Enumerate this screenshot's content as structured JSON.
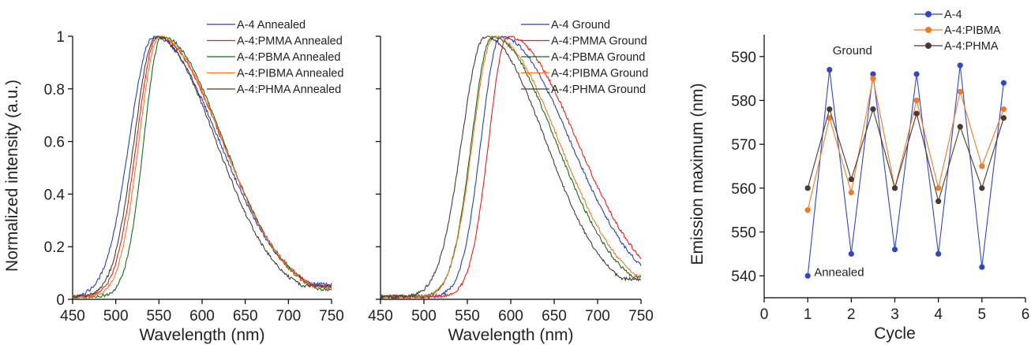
{
  "chart_data": [
    {
      "type": "line",
      "xlabel": "Wavelength (nm)",
      "ylabel": "Normalized intensity (a.u.)",
      "xlim": [
        450,
        750
      ],
      "ylim": [
        0,
        1
      ],
      "xticks": [
        450,
        500,
        550,
        600,
        650,
        700,
        750
      ],
      "yticks": [
        0,
        0.2,
        0.4,
        0.6,
        0.8,
        1
      ],
      "ytick_labels": [
        "0",
        "0.2",
        "0.4",
        "0.6",
        "0.8",
        "1"
      ],
      "legend_position": "top-right",
      "series": [
        {
          "name": "A-4 Annealed",
          "color": "#2b3fb8",
          "peak": 543,
          "wl": 32,
          "wr": 90,
          "tail": 0.075
        },
        {
          "name": "A-4:PMMA Annealed",
          "color": "#e8211d",
          "peak": 548,
          "wl": 28,
          "wr": 88,
          "tail": 0.065
        },
        {
          "name": "A-4:PBMA Annealed",
          "color": "#1c6a1c",
          "peak": 553,
          "wl": 24,
          "wr": 84,
          "tail": 0.05
        },
        {
          "name": "A-4:PIBMA Annealed",
          "color": "#f07a2a",
          "peak": 550,
          "wl": 27,
          "wr": 86,
          "tail": 0.06
        },
        {
          "name": "A-4:PHMA Annealed",
          "color": "#4a3a32",
          "peak": 546,
          "wl": 29,
          "wr": 82,
          "tail": 0.065
        }
      ]
    },
    {
      "type": "line",
      "xlabel": "Wavelength (nm)",
      "ylabel": "",
      "xlim": [
        450,
        750
      ],
      "ylim": [
        0,
        1
      ],
      "xticks": [
        450,
        500,
        550,
        600,
        650,
        700,
        750
      ],
      "yticks": [
        0,
        0.2,
        0.4,
        0.6,
        0.8,
        1
      ],
      "ytick_labels": [
        "",
        "",
        "",
        "",
        "",
        ""
      ],
      "legend_position": "top-right",
      "series": [
        {
          "name": "A-4 Ground",
          "color": "#2b3fb8",
          "peak": 588,
          "wl": 26,
          "wr": 94,
          "tail": 0.13
        },
        {
          "name": "A-4:PMMA Ground",
          "color": "#e8211d",
          "peak": 596,
          "wl": 25,
          "wr": 94,
          "tail": 0.14
        },
        {
          "name": "A-4:PBMA Ground",
          "color": "#1c6a1c",
          "peak": 578,
          "wl": 27,
          "wr": 86,
          "tail": 0.11
        },
        {
          "name": "A-4:PIBMA Ground",
          "color": "#f07a2a",
          "peak": 580,
          "wl": 28,
          "wr": 88,
          "tail": 0.12
        },
        {
          "name": "A-4:PHMA Ground",
          "color": "#4a3a32",
          "peak": 570,
          "wl": 31,
          "wr": 82,
          "tail": 0.1
        }
      ]
    },
    {
      "type": "line",
      "xlabel": "Cycle",
      "ylabel": "Emission maximum (nm)",
      "xlim": [
        0,
        6
      ],
      "ylim": [
        535,
        595
      ],
      "xticks": [
        0,
        1,
        2,
        3,
        4,
        5,
        6
      ],
      "yticks": [
        540,
        550,
        560,
        570,
        580,
        590
      ],
      "legend_position": "top-right",
      "annotations": {
        "ground": "Ground",
        "annealed": "Annealed"
      },
      "x": [
        1,
        1.5,
        2,
        2.5,
        3,
        3.5,
        4,
        4.5,
        5,
        5.5
      ],
      "series": [
        {
          "name": "A-4",
          "color": "#3346c4",
          "values": [
            540,
            587,
            545,
            586,
            546,
            586,
            545,
            588,
            542,
            584
          ]
        },
        {
          "name": "A-4:PIBMA",
          "color": "#f07a2a",
          "values": [
            555,
            576,
            559,
            585,
            560,
            580,
            560,
            582,
            565,
            578
          ]
        },
        {
          "name": "A-4:PHMA",
          "color": "#4a3a32",
          "values": [
            560,
            578,
            562,
            578,
            560,
            577,
            557,
            574,
            560,
            576
          ]
        }
      ]
    }
  ]
}
